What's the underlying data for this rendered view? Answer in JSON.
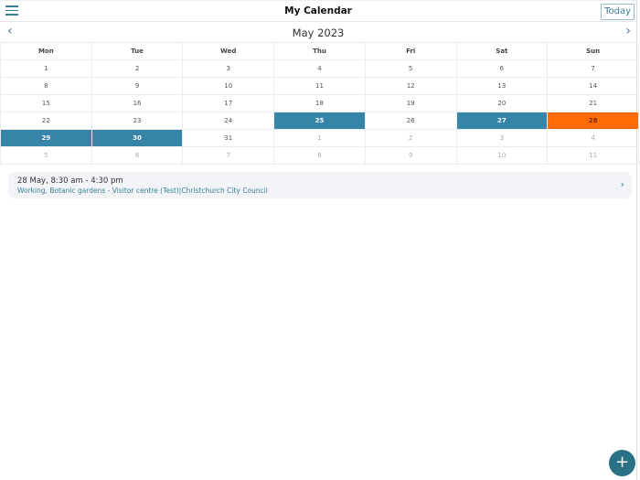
{
  "header": {
    "title": "My Calendar",
    "today_label": "Today",
    "menu_icon": "hamburger-menu-icon"
  },
  "month_nav": {
    "label": "May 2023",
    "prev_icon": "‹",
    "next_icon": "›"
  },
  "calendar": {
    "weekdays": [
      "Mon",
      "Tue",
      "Wed",
      "Thu",
      "Fri",
      "Sat",
      "Sun"
    ],
    "weeks": [
      [
        {
          "d": "1"
        },
        {
          "d": "2"
        },
        {
          "d": "3"
        },
        {
          "d": "4"
        },
        {
          "d": "5"
        },
        {
          "d": "6"
        },
        {
          "d": "7"
        }
      ],
      [
        {
          "d": "8"
        },
        {
          "d": "9"
        },
        {
          "d": "10"
        },
        {
          "d": "11"
        },
        {
          "d": "12"
        },
        {
          "d": "13"
        },
        {
          "d": "14"
        }
      ],
      [
        {
          "d": "15"
        },
        {
          "d": "16"
        },
        {
          "d": "17"
        },
        {
          "d": "18"
        },
        {
          "d": "19"
        },
        {
          "d": "20"
        },
        {
          "d": "21"
        }
      ],
      [
        {
          "d": "22"
        },
        {
          "d": "23"
        },
        {
          "d": "24"
        },
        {
          "d": "25",
          "s": "blue"
        },
        {
          "d": "26"
        },
        {
          "d": "27",
          "s": "blue"
        },
        {
          "d": "28",
          "s": "orange"
        }
      ],
      [
        {
          "d": "29",
          "s": "blue"
        },
        {
          "d": "30",
          "s": "blue"
        },
        {
          "d": "31"
        },
        {
          "d": "1",
          "s": "other"
        },
        {
          "d": "2",
          "s": "other"
        },
        {
          "d": "3",
          "s": "other"
        },
        {
          "d": "4",
          "s": "other"
        }
      ],
      [
        {
          "d": "5",
          "s": "other"
        },
        {
          "d": "6",
          "s": "other"
        },
        {
          "d": "7",
          "s": "other"
        },
        {
          "d": "8",
          "s": "other"
        },
        {
          "d": "9",
          "s": "other"
        },
        {
          "d": "10",
          "s": "other"
        },
        {
          "d": "11",
          "s": "other"
        }
      ]
    ],
    "colors": {
      "shift": "#3784a9",
      "selected": "#ff6c03"
    }
  },
  "event": {
    "time": "28 May, 8:30 am - 4:30 pm",
    "description": "Working, Botanic gardens - Visitor centre (Test)|Christchurch City Council",
    "chevron": "›"
  },
  "fab": {
    "label": "+",
    "icon": "add-icon"
  }
}
